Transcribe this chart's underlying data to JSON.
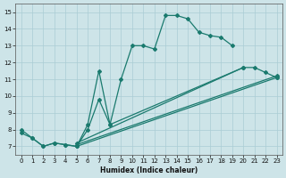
{
  "xlabel": "Humidex (Indice chaleur)",
  "xlim": [
    -0.5,
    23.5
  ],
  "ylim": [
    6.5,
    15.5
  ],
  "xticks": [
    0,
    1,
    2,
    3,
    4,
    5,
    6,
    7,
    8,
    9,
    10,
    11,
    12,
    13,
    14,
    15,
    16,
    17,
    18,
    19,
    20,
    21,
    22,
    23
  ],
  "yticks": [
    7,
    8,
    9,
    10,
    11,
    12,
    13,
    14,
    15
  ],
  "bg_color": "#cde4e8",
  "grid_color": "#aacdd4",
  "line_color": "#1a7a6e",
  "line1_x": [
    0,
    1,
    2,
    3,
    4,
    5,
    6,
    7,
    8,
    9,
    10,
    11,
    12,
    13,
    14,
    15,
    16,
    17,
    18,
    19
  ],
  "line1_y": [
    8.0,
    7.5,
    7.0,
    7.2,
    7.1,
    7.0,
    8.3,
    11.5,
    8.3,
    11.0,
    13.0,
    13.0,
    12.8,
    14.8,
    14.8,
    14.6,
    13.8,
    13.6,
    13.5,
    13.0
  ],
  "line2_x": [
    0,
    1,
    2,
    3,
    4,
    5,
    6,
    7,
    8,
    20,
    21,
    22,
    23
  ],
  "line2_y": [
    7.8,
    7.5,
    7.0,
    7.2,
    7.1,
    7.0,
    8.0,
    9.8,
    8.3,
    11.7,
    11.7,
    11.4,
    11.1
  ],
  "line3_x": [
    5,
    23
  ],
  "line3_y": [
    7.0,
    11.1
  ],
  "line4_x": [
    5,
    23
  ],
  "line4_y": [
    7.1,
    11.2
  ],
  "line5_x": [
    5,
    20
  ],
  "line5_y": [
    7.2,
    11.7
  ]
}
